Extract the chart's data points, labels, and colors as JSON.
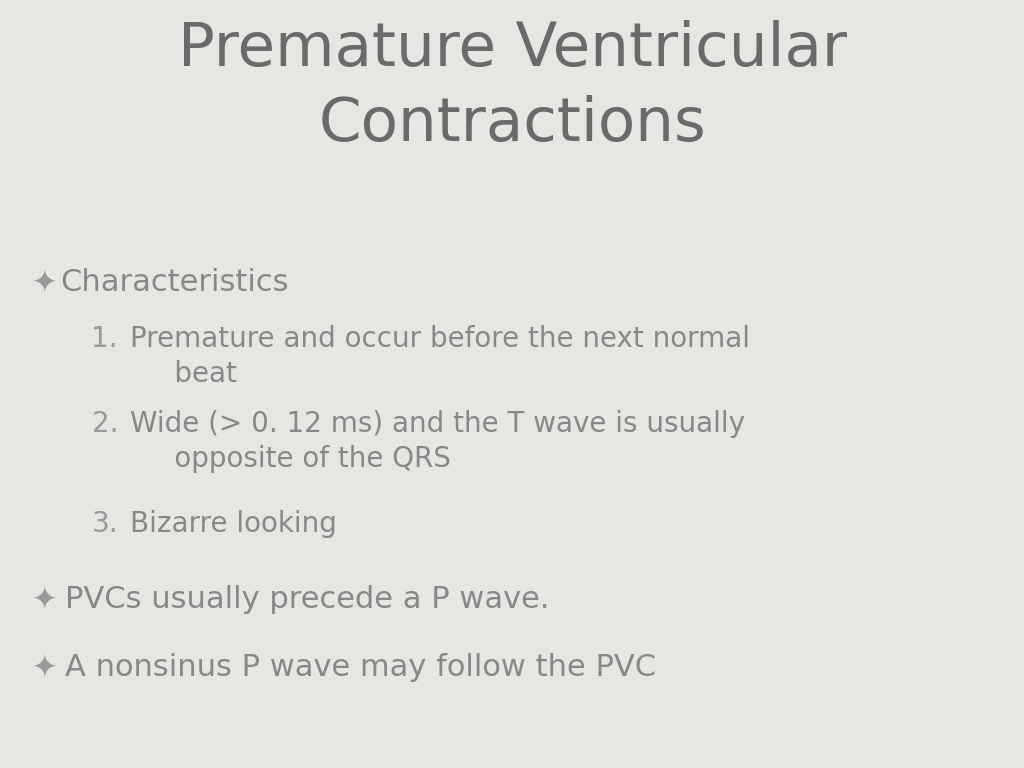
{
  "title_line1": "Premature Ventricular",
  "title_line2": "Contractions",
  "title_color": "#6a6a6a",
  "title_fontsize": 44,
  "background_color": "#e8e6e3",
  "text_color": "#888888",
  "bullet_color": "#999999",
  "bullet_symbol": "✦",
  "bullet1_label": "Characteristics",
  "bullet1_fontsize": 22,
  "items": [
    {
      "num": "1.",
      "text": "Premature and occur before the next normal\n     beat"
    },
    {
      "num": "2.",
      "text": "Wide (> 0. 12 ms) and the T wave is usually\n     opposite of the QRS"
    },
    {
      "num": "3.",
      "text": "Bizarre looking"
    }
  ],
  "item_fontsize": 20,
  "bullet2_text": "PVCs usually precede a P wave.",
  "bullet3_text": "A nonsinus P wave may follow the PVC",
  "bullet23_fontsize": 22
}
